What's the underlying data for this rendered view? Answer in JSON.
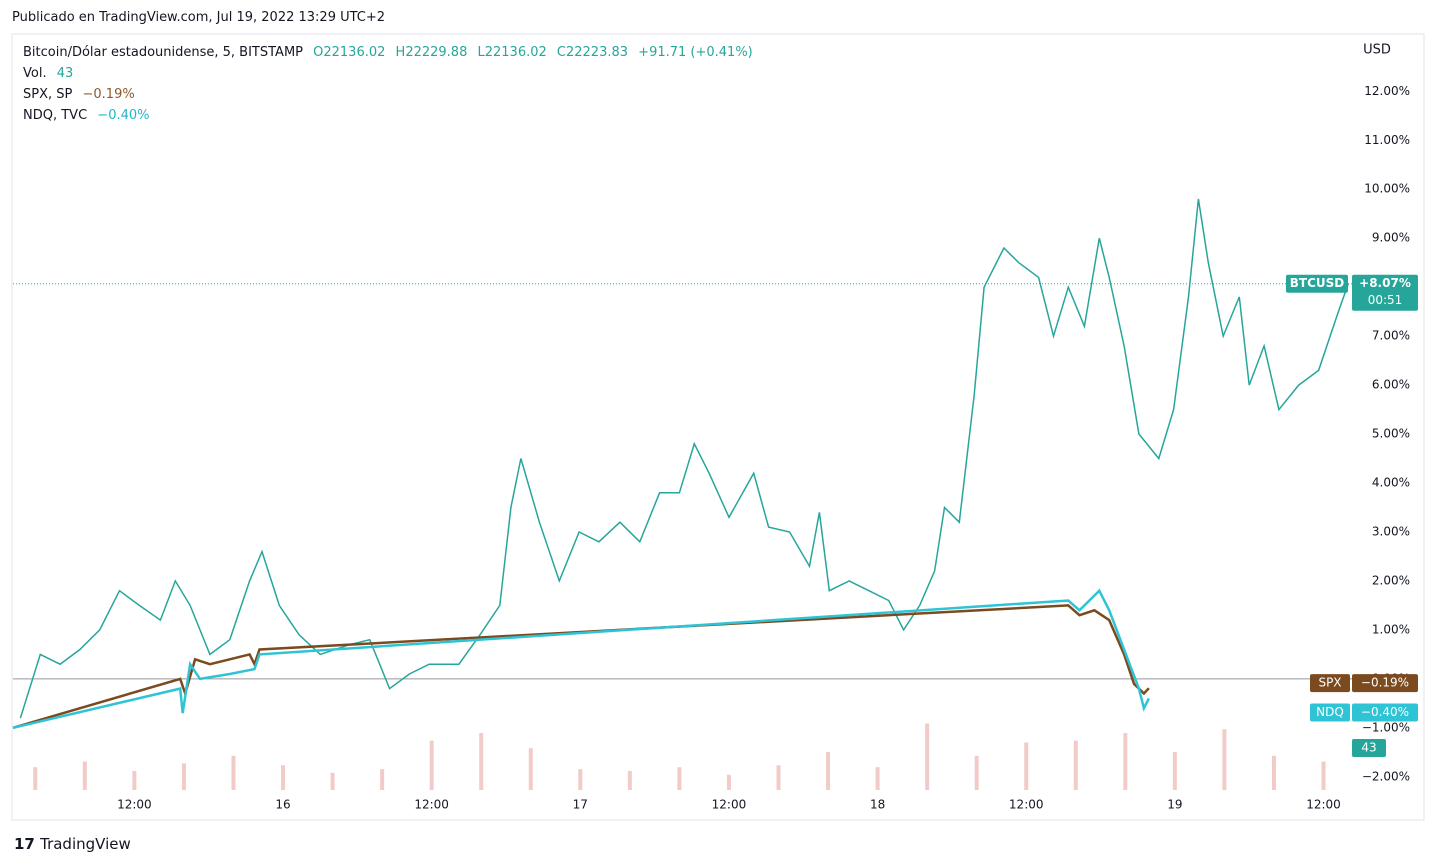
{
  "header": "Publicado en TradingView.com, Jul 19, 2022 13:29 UTC+2",
  "footer": "TradingView",
  "chart_data": {
    "type": "line",
    "currency": "USD",
    "legend": {
      "symbol": "Bitcoin/Dólar estadounidense, 5, BITSTAMP",
      "open": "O22136.02",
      "high": "H22229.88",
      "low": "L22136.02",
      "close": "C22223.83",
      "change": "+91.71 (+0.41%)"
    },
    "vol_label": "Vol.",
    "vol_value": 43,
    "xlim": [
      2.2,
      110.3
    ],
    "xticks": [
      {
        "value": 12,
        "label": "12:00"
      },
      {
        "value": 24,
        "label": "16"
      },
      {
        "value": 36,
        "label": "12:00"
      },
      {
        "value": 48,
        "label": "17"
      },
      {
        "value": 60,
        "label": "12:00"
      },
      {
        "value": 72,
        "label": "18"
      },
      {
        "value": 84,
        "label": "12:00"
      },
      {
        "value": 96,
        "label": "19"
      },
      {
        "value": 108,
        "label": "12:00"
      }
    ],
    "ylim": [
      -2.27,
      13.15
    ],
    "yticks": [
      {
        "value": -2,
        "label": "−2.00%"
      },
      {
        "value": -1,
        "label": "−1.00%"
      },
      {
        "value": 0,
        "label": "0.00%"
      },
      {
        "value": 1,
        "label": "1.00%"
      },
      {
        "value": 2,
        "label": "2.00%"
      },
      {
        "value": 3,
        "label": "3.00%"
      },
      {
        "value": 4,
        "label": "4.00%"
      },
      {
        "value": 5,
        "label": "5.00%"
      },
      {
        "value": 6,
        "label": "6.00%"
      },
      {
        "value": 7,
        "label": "7.00%"
      },
      {
        "value": 8,
        "label": "8.00%"
      },
      {
        "value": 9,
        "label": "9.00%"
      },
      {
        "value": 10,
        "label": "10.00%"
      },
      {
        "value": 11,
        "label": "11.00%"
      },
      {
        "value": 12,
        "label": "12.00%"
      }
    ],
    "series": [
      {
        "name": "BTCUSD",
        "color": "#26a69a",
        "last_label": "+8.07%",
        "countdown": "00:51",
        "x": [
          2.8,
          4.4,
          6.0,
          7.6,
          9.2,
          10.8,
          12.4,
          14.1,
          15.3,
          16.5,
          18.1,
          19.7,
          21.3,
          22.3,
          23.7,
          25.3,
          27.0,
          29.4,
          31.0,
          32.6,
          34.2,
          35.8,
          38.2,
          39.9,
          41.5,
          42.4,
          43.2,
          44.7,
          46.3,
          47.9,
          49.5,
          51.2,
          52.8,
          54.4,
          56.0,
          57.2,
          58.4,
          60.0,
          62.0,
          63.2,
          64.9,
          66.5,
          67.3,
          68.1,
          69.7,
          71.3,
          72.9,
          74.1,
          75.4,
          76.6,
          77.4,
          78.6,
          79.8,
          80.6,
          82.2,
          83.4,
          85.0,
          86.2,
          87.4,
          88.7,
          89.9,
          90.7,
          91.9,
          93.1,
          94.7,
          95.9,
          97.1,
          97.9,
          98.7,
          99.9,
          101.2,
          102.0,
          103.2,
          104.4,
          106.0,
          107.6,
          109.2,
          110.0
        ],
        "values": [
          -0.8,
          0.5,
          0.3,
          0.6,
          1.0,
          1.8,
          1.5,
          1.2,
          2.0,
          1.5,
          0.5,
          0.8,
          2.0,
          2.6,
          1.5,
          0.9,
          0.5,
          0.7,
          0.8,
          -0.2,
          0.1,
          0.3,
          0.3,
          0.9,
          1.5,
          3.5,
          4.5,
          3.2,
          2.0,
          3.0,
          2.8,
          3.2,
          2.8,
          3.8,
          3.8,
          4.8,
          4.2,
          3.3,
          4.2,
          3.1,
          3.0,
          2.3,
          3.4,
          1.8,
          2.0,
          1.8,
          1.6,
          1.0,
          1.5,
          2.2,
          3.5,
          3.2,
          5.8,
          8.0,
          8.8,
          8.5,
          8.2,
          7.0,
          8.0,
          7.2,
          9.0,
          8.2,
          6.8,
          5.0,
          4.5,
          5.5,
          7.8,
          9.8,
          8.5,
          7.0,
          7.8,
          6.0,
          6.8,
          5.5,
          6.0,
          6.3,
          7.5,
          8.07
        ]
      },
      {
        "name": "SPX",
        "legend": "SPX, SP",
        "color": "#7b4a1e",
        "last_label": "−0.19%",
        "x": [
          2.2,
          15.7,
          16.1,
          16.9,
          18.1,
          19.7,
          21.3,
          21.7,
          22.1,
          87.4,
          88.3,
          89.5,
          90.7,
          91.9,
          92.7,
          93.5,
          93.9
        ],
        "values": [
          -1.0,
          0.0,
          -0.3,
          0.4,
          0.3,
          0.4,
          0.5,
          0.3,
          0.6,
          1.5,
          1.3,
          1.4,
          1.2,
          0.5,
          -0.1,
          -0.3,
          -0.19
        ]
      },
      {
        "name": "NDQ",
        "legend": "NDQ, TVC",
        "color": "#2ec4d6",
        "last_label": "−0.40%",
        "x": [
          2.2,
          15.7,
          15.9,
          16.5,
          17.3,
          19.7,
          21.7,
          22.1,
          87.4,
          88.3,
          89.9,
          90.7,
          91.9,
          93.1,
          93.5,
          93.9
        ],
        "values": [
          -1.0,
          -0.2,
          -0.7,
          0.3,
          0.0,
          0.1,
          0.2,
          0.5,
          1.6,
          1.4,
          1.8,
          1.4,
          0.6,
          -0.2,
          -0.6,
          -0.4
        ]
      }
    ],
    "volume": {
      "color": "#e8a9a4",
      "ylim": [
        0,
        1000
      ],
      "x": [
        4,
        8,
        12,
        16,
        20,
        24,
        28,
        32,
        36,
        40,
        44,
        48,
        52,
        56,
        60,
        64,
        68,
        72,
        76,
        80,
        84,
        88,
        92,
        96,
        100,
        104,
        108
      ],
      "values": [
        120,
        150,
        100,
        140,
        180,
        130,
        90,
        110,
        260,
        300,
        220,
        110,
        100,
        120,
        80,
        130,
        200,
        120,
        350,
        180,
        250,
        260,
        300,
        200,
        320,
        180,
        150
      ]
    }
  }
}
